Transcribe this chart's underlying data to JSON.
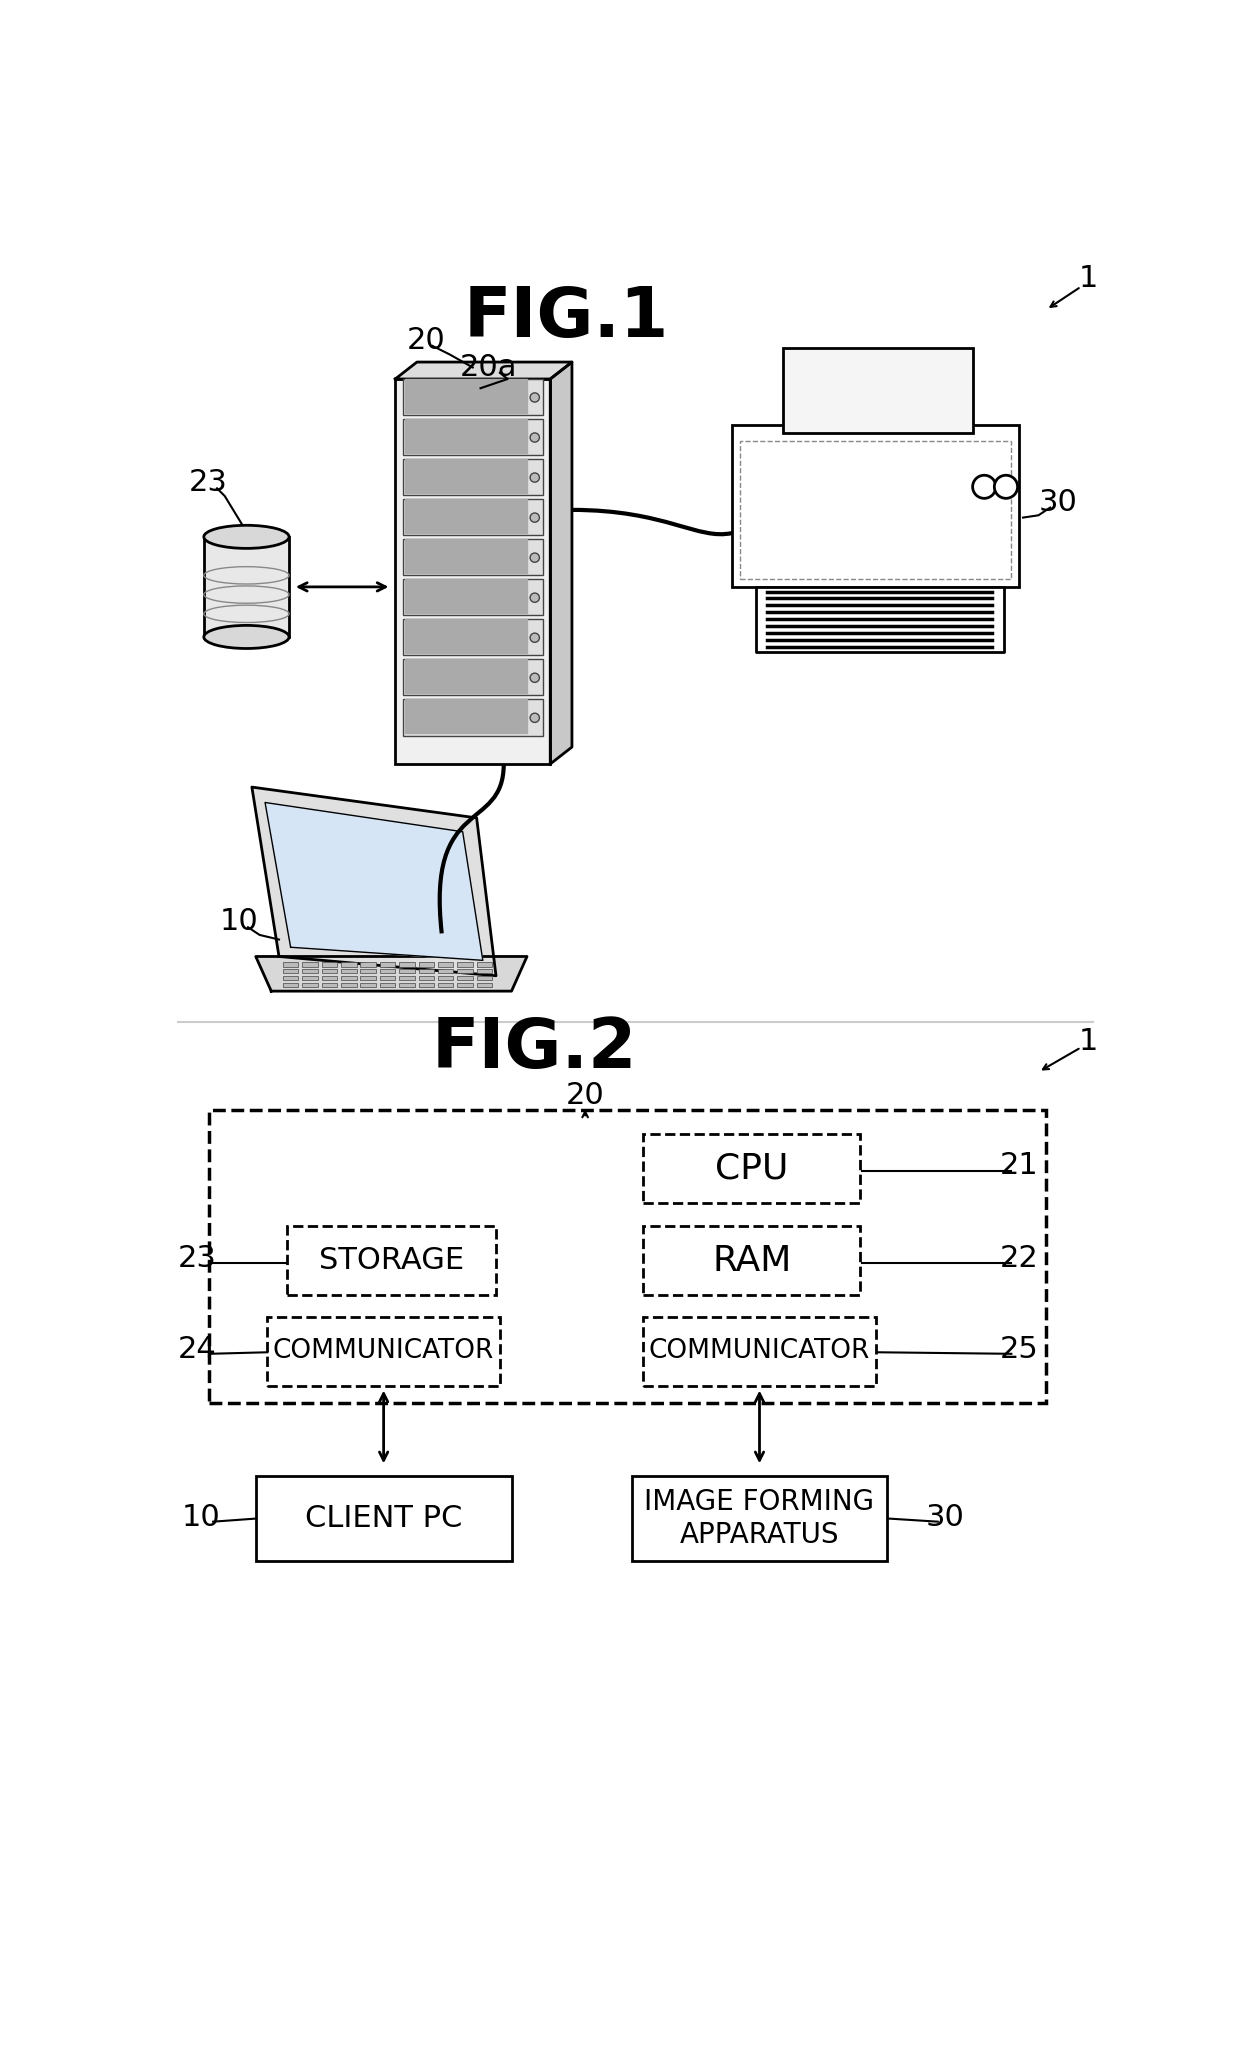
{
  "fig1_title": "FIG.1",
  "fig2_title": "FIG.2",
  "bg_color": "#ffffff",
  "label_1": "1",
  "label_20_fig1": "20",
  "label_20a": "20a",
  "label_23_fig1": "23",
  "label_30_fig1": "30",
  "label_10_fig1": "10",
  "label_20_fig2": "20",
  "label_1_fig2": "1",
  "label_21": "21",
  "label_22": "22",
  "label_23_fig2": "23",
  "label_24": "24",
  "label_25": "25",
  "label_10_fig2": "10",
  "label_30_fig2": "30",
  "box_cpu": "CPU",
  "box_ram": "RAM",
  "box_storage": "STORAGE",
  "box_comm_left": "COMMUNICATOR",
  "box_comm_right": "COMMUNICATOR",
  "box_client": "CLIENT PC",
  "box_image": "IMAGE FORMING\nAPPARATUS"
}
